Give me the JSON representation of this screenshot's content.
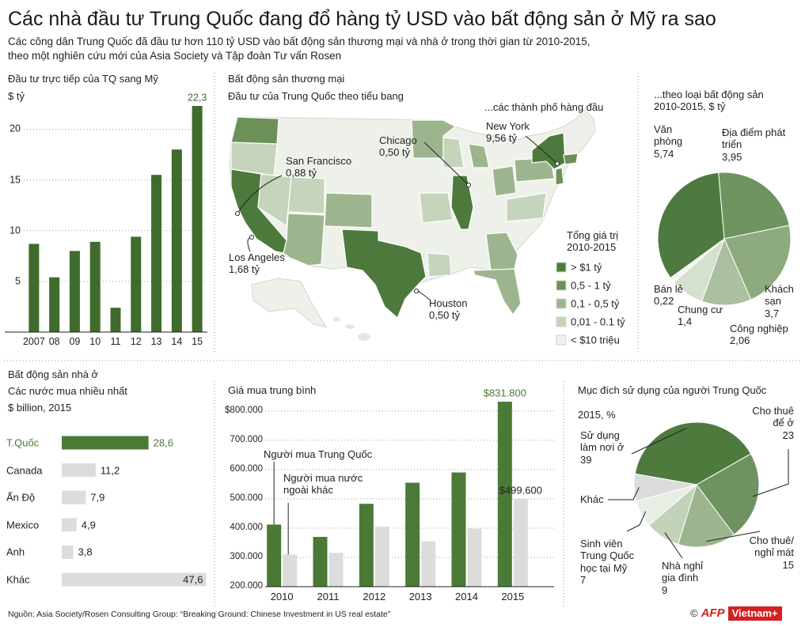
{
  "title": "Các nhà đầu tư Trung Quốc đang đổ hàng tỷ USD vào bất động sản ở Mỹ ra sao",
  "subtitle": "Các công dân Trung Quốc đã đầu tư hơn 110 tỷ USD vào bất động sản thương mại và nhà ở trong thời gian từ 2010-2015,\ntheo một nghiên cứu mới của Asia Society và Tập đoàn Tư vấn Rosen",
  "source": "Nguồn: Asia Society/Rosen Consulting Group: “Breaking Ground: Chinese Investment in US real estate”",
  "credit": {
    "copyright": "©",
    "agency": "AFP",
    "outlet": "Vietnam+"
  },
  "chart_data": [
    {
      "type": "bar",
      "title": "Đầu tư trực tiếp của TQ sang Mỹ",
      "ylabel": "$ tỷ",
      "categories": [
        "2007",
        "08",
        "09",
        "10",
        "11",
        "12",
        "13",
        "14",
        "15"
      ],
      "values": [
        8.7,
        5.4,
        8.0,
        8.9,
        2.4,
        9.4,
        15.5,
        18.0,
        22.3
      ],
      "value_labels": [
        null,
        null,
        null,
        null,
        null,
        null,
        null,
        null,
        "22,3"
      ],
      "color": "#3f6b2c",
      "ylim": [
        0,
        23
      ],
      "yticks": [
        5,
        10,
        15,
        20
      ],
      "grid": true
    },
    {
      "type": "map",
      "title": "Bất động sản thương mại",
      "subtitle": "Đầu tư của Trung Quốc theo tiểu bang",
      "cities_title": "...các thành phố hàng đầu",
      "legend_title": "Tổng giá trị\n2010-2015",
      "legend": [
        {
          "label": "> $1 tỷ",
          "color": "#4d7a3c"
        },
        {
          "label": "0,5 - 1 tỷ",
          "color": "#6c9159"
        },
        {
          "label": "0,1 - 0,5 tỷ",
          "color": "#9db58f"
        },
        {
          "label": "0,01 - 0.1 tỷ",
          "color": "#c6d4bc"
        },
        {
          "label": "< $10 triệu",
          "color": "#eef1ea"
        }
      ],
      "cities": [
        {
          "name": "San Francisco",
          "value": 0.88,
          "value_label": "0,88 tỷ"
        },
        {
          "name": "Los Angeles",
          "value": 1.68,
          "value_label": "1,68 tỷ"
        },
        {
          "name": "Chicago",
          "value": 0.5,
          "value_label": "0,50 tỷ"
        },
        {
          "name": "New York",
          "value": 9.56,
          "value_label": "9,56 tỷ"
        },
        {
          "name": "Houston",
          "value": 0.5,
          "value_label": "0,50 tỷ"
        }
      ]
    },
    {
      "type": "pie",
      "title": "...theo loại bất động sản\n2010-2015, $ tỷ",
      "categories": [
        "Địa điểm phát\ntriển",
        "Khách\nsạn",
        "Công nghiệp",
        "Chung cư",
        "Bán lẻ",
        "Văn\nphòng"
      ],
      "values": [
        3.95,
        3.7,
        2.06,
        1.4,
        0.22,
        5.74
      ],
      "value_labels": [
        "3,95",
        "3,7",
        "2,06",
        "1,4",
        "0,22",
        "5,74"
      ],
      "colors": [
        "#6f9461",
        "#8eaa81",
        "#abc0a0",
        "#d6e0cf",
        "#f2f5ef",
        "#4e7a3f"
      ]
    },
    {
      "type": "hbar",
      "title": "Bất động sản nhà ở",
      "subtitle": "Các nước mua nhiều nhất",
      "unit": "$ billion, 2015",
      "categories": [
        "T.Quốc",
        "Canada",
        "Ấn Độ",
        "Mexico",
        "Anh",
        "Khác"
      ],
      "values": [
        28.6,
        11.2,
        7.9,
        4.9,
        3.8,
        47.6
      ],
      "value_labels": [
        "28,6",
        "11,2",
        "7,9",
        "4,9",
        "3,8",
        "47,6"
      ],
      "colors": [
        "#4a7a36",
        "#dcdcdc",
        "#dcdcdc",
        "#dcdcdc",
        "#dcdcdc",
        "#dcdcdc"
      ],
      "xlim": [
        0,
        48
      ]
    },
    {
      "type": "grouped_bar",
      "title": "Giá mua trung bình",
      "categories": [
        "2010",
        "2011",
        "2012",
        "2013",
        "2014",
        "2015"
      ],
      "series": [
        {
          "name": "Người mua Trung Quốc",
          "color": "#4a7a36",
          "values": [
            412000,
            370000,
            483000,
            555000,
            590000,
            831800
          ],
          "value_labels": [
            null,
            null,
            null,
            null,
            null,
            "$831.800"
          ]
        },
        {
          "name": "Người mua nước\nngoài khác",
          "color": "#dcdcdc",
          "values": [
            310000,
            315000,
            405000,
            355000,
            398000,
            499600
          ],
          "value_labels": [
            null,
            null,
            null,
            null,
            null,
            "$499.600"
          ]
        }
      ],
      "ylim": [
        200000,
        840000
      ],
      "yticks": [
        {
          "value": 200000,
          "label": "200.000"
        },
        {
          "value": 300000,
          "label": "300.000"
        },
        {
          "value": 400000,
          "label": "400.000"
        },
        {
          "value": 500000,
          "label": "500.000"
        },
        {
          "value": 600000,
          "label": "600.000"
        },
        {
          "value": 700000,
          "label": "700.000"
        },
        {
          "value": 800000,
          "label": "$800.000"
        }
      ],
      "grid": true
    },
    {
      "type": "pie",
      "title": "Mục đích sử dụng của người Trung Quốc\n\n2015, %",
      "categories": [
        "Sử dụng\nlàm nơi ở",
        "Cho thuê\nđể ở",
        "Cho thuê/\nnghỉ mát",
        "Nhà nghỉ\ngia đình",
        "Sinh viên\nTrung Quốc\nhọc tại Mỹ",
        "Khác"
      ],
      "values": [
        39,
        23,
        15,
        9,
        7,
        7
      ],
      "value_labels": [
        "39",
        "23",
        "15",
        "9",
        "7",
        null
      ],
      "colors": [
        "#4f7a3e",
        "#6e9361",
        "#9cb58f",
        "#c3d3b9",
        "#e8eee3",
        "#dcdcdc"
      ]
    }
  ]
}
